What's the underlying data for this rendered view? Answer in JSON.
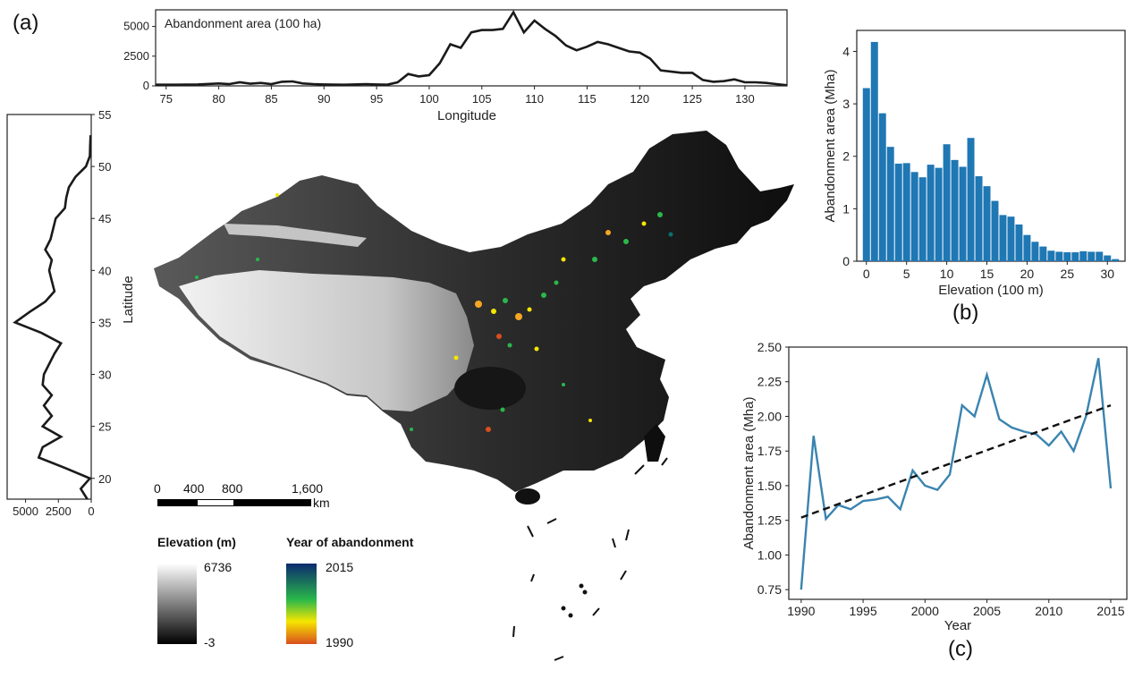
{
  "panel_labels": {
    "a": "(a)",
    "b": "(b)",
    "c": "(c)"
  },
  "colors": {
    "line": "#1a1a1a",
    "bar": "#1f77b4",
    "trend_line": "#3a84b0",
    "fit": "#111111",
    "abandon_low": "#d94f1e",
    "abandon_mid": "#f5e600",
    "abandon_green": "#2ab84a",
    "abandon_high": "#0b2a6e"
  },
  "map": {
    "scale_bar": {
      "labels": [
        "0",
        "400",
        "800",
        "1,600"
      ],
      "unit": "km"
    },
    "elevation_legend": {
      "title": "Elevation (m)",
      "max": "6736",
      "min": "-3"
    },
    "year_legend": {
      "title": "Year of abandonment",
      "max": "2015",
      "min": "1990"
    }
  },
  "chart_data": [
    {
      "id": "longitude_profile",
      "type": "line",
      "annotation": "Abandonment area (100 ha)",
      "xlabel": "Longitude",
      "ylabel": "",
      "xlim": [
        74,
        134
      ],
      "ylim": [
        0,
        6400
      ],
      "xticks": [
        75,
        80,
        85,
        90,
        95,
        100,
        105,
        110,
        115,
        120,
        125,
        130
      ],
      "yticks": [
        0,
        2500,
        5000
      ],
      "ytick_labels": [
        "0",
        "2500",
        "5000"
      ],
      "x": [
        74,
        76,
        78,
        80,
        81,
        82,
        83,
        84,
        85,
        86,
        87,
        88,
        89,
        90,
        92,
        94,
        95,
        96,
        97,
        98,
        99,
        100,
        101,
        102,
        103,
        104,
        105,
        106,
        107,
        108,
        109,
        110,
        111,
        112,
        113,
        114,
        115,
        116,
        117,
        118,
        119,
        120,
        121,
        122,
        123,
        124,
        125,
        126,
        127,
        128,
        129,
        130,
        131,
        132,
        133,
        134
      ],
      "values": [
        100,
        100,
        120,
        200,
        150,
        300,
        180,
        250,
        150,
        350,
        380,
        200,
        150,
        120,
        100,
        150,
        120,
        100,
        300,
        1000,
        800,
        900,
        1900,
        3500,
        3200,
        4500,
        4700,
        4700,
        4800,
        6200,
        4500,
        5500,
        4800,
        4200,
        3400,
        3000,
        3300,
        3700,
        3500,
        3200,
        2900,
        2800,
        2300,
        1300,
        1200,
        1100,
        1100,
        500,
        350,
        400,
        550,
        300,
        300,
        250,
        150,
        50
      ]
    },
    {
      "id": "latitude_profile",
      "type": "line",
      "orientation": "vertical",
      "xlabel": "",
      "ylabel": "Latitude",
      "xlim_reversed": [
        0,
        6400
      ],
      "ylim": [
        18,
        55
      ],
      "xticks": [
        5000,
        2500,
        0
      ],
      "xtick_labels": [
        "5000",
        "2500",
        "0"
      ],
      "yticks": [
        20,
        25,
        30,
        35,
        40,
        45,
        50,
        55
      ],
      "y": [
        18,
        19,
        20,
        21,
        22,
        23,
        24,
        25,
        26,
        27,
        28,
        29,
        30,
        31,
        32,
        33,
        34,
        35,
        36,
        37,
        38,
        39,
        40,
        41,
        42,
        43,
        44,
        45,
        46,
        47,
        48,
        49,
        50,
        51,
        52,
        53
      ],
      "values": [
        300,
        800,
        100,
        2000,
        4000,
        3700,
        2300,
        3700,
        3000,
        3600,
        3000,
        3700,
        3600,
        3200,
        2800,
        2300,
        3800,
        5800,
        4700,
        3500,
        2800,
        3000,
        3200,
        3000,
        3500,
        3100,
        2900,
        2700,
        2000,
        1900,
        1700,
        1200,
        400,
        100,
        80,
        50
      ]
    },
    {
      "id": "elevation_hist",
      "type": "bar",
      "xlabel": "Elevation (100 m)",
      "ylabel": "Abandonment area (Mha)",
      "xlim": [
        -1.2,
        32.2
      ],
      "ylim": [
        0,
        4.4
      ],
      "xticks": [
        0,
        5,
        10,
        15,
        20,
        25,
        30
      ],
      "yticks": [
        0,
        1,
        2,
        3,
        4
      ],
      "categories": [
        0,
        1,
        2,
        3,
        4,
        5,
        6,
        7,
        8,
        9,
        10,
        11,
        12,
        13,
        14,
        15,
        16,
        17,
        18,
        19,
        20,
        21,
        22,
        23,
        24,
        25,
        26,
        27,
        28,
        29,
        30,
        31
      ],
      "values": [
        3.3,
        4.18,
        2.82,
        2.18,
        1.86,
        1.87,
        1.7,
        1.6,
        1.84,
        1.78,
        2.23,
        1.93,
        1.8,
        2.35,
        1.62,
        1.43,
        1.15,
        0.88,
        0.85,
        0.7,
        0.5,
        0.37,
        0.28,
        0.2,
        0.18,
        0.17,
        0.17,
        0.19,
        0.18,
        0.18,
        0.11,
        0.04
      ]
    },
    {
      "id": "year_trend",
      "type": "line",
      "xlabel": "Year",
      "ylabel": "Abandonment area (Mha)",
      "xlim": [
        1989,
        2016.3
      ],
      "ylim": [
        0.68,
        2.5
      ],
      "xticks": [
        1990,
        1995,
        2000,
        2005,
        2010,
        2015
      ],
      "yticks": [
        0.75,
        1.0,
        1.25,
        1.5,
        1.75,
        2.0,
        2.25,
        2.5
      ],
      "ytick_labels": [
        "0.75",
        "1.00",
        "1.25",
        "1.50",
        "1.75",
        "2.00",
        "2.25",
        "2.50"
      ],
      "x": [
        1990,
        1991,
        1992,
        1993,
        1994,
        1995,
        1996,
        1997,
        1998,
        1999,
        2000,
        2001,
        2002,
        2003,
        2004,
        2005,
        2006,
        2007,
        2008,
        2009,
        2010,
        2011,
        2012,
        2013,
        2014,
        2015
      ],
      "values": [
        0.75,
        1.86,
        1.26,
        1.36,
        1.33,
        1.39,
        1.4,
        1.42,
        1.33,
        1.61,
        1.5,
        1.47,
        1.58,
        2.08,
        2.0,
        2.3,
        1.98,
        1.92,
        1.89,
        1.87,
        1.79,
        1.89,
        1.75,
        2.0,
        2.42,
        1.48
      ],
      "fit_line": {
        "x": [
          1990,
          2015
        ],
        "values": [
          1.27,
          2.08
        ]
      }
    }
  ]
}
